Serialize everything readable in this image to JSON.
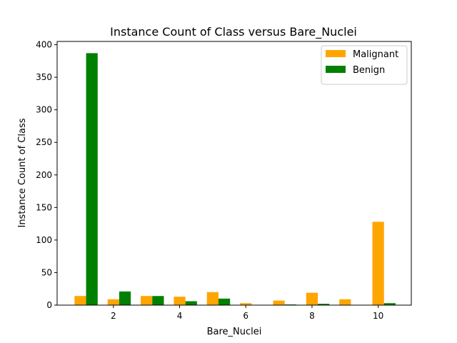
{
  "chart_data": {
    "type": "bar",
    "title": "Instance Count of Class versus Bare_Nuclei",
    "xlabel": "Bare_Nuclei",
    "ylabel": "Instance Count of Class",
    "x": [
      1,
      2,
      3,
      4,
      5,
      6,
      7,
      8,
      9,
      10
    ],
    "xlim": [
      0.3,
      11.0
    ],
    "ylim": [
      0,
      405
    ],
    "xticks": [
      2,
      4,
      6,
      8,
      10
    ],
    "yticks": [
      0,
      50,
      100,
      150,
      200,
      250,
      300,
      350,
      400
    ],
    "bar_width": 0.35,
    "series": [
      {
        "name": "Malignant",
        "color": "#FFA500",
        "values": [
          14,
          9,
          14,
          13,
          20,
          3,
          7,
          19,
          9,
          128
        ],
        "offset": 0
      },
      {
        "name": "Benign",
        "color": "#008000",
        "values": [
          387,
          21,
          14,
          6,
          10,
          0,
          1,
          2,
          0,
          3
        ],
        "offset": 1
      }
    ],
    "legend_position": "top-right",
    "grid": false
  }
}
